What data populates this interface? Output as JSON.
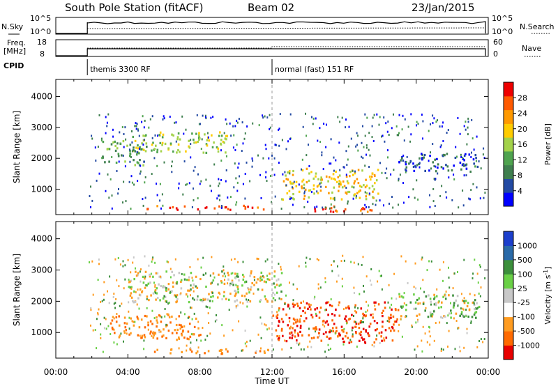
{
  "header": {
    "station": "South Pole Station (fitACF)",
    "beam": "Beam 02",
    "date": "23/Jan/2015"
  },
  "top_panels": {
    "nsky_label": "N.Sky",
    "nsky_ticks": [
      "10^5",
      "10^0"
    ],
    "nsearch_label": "N.Search",
    "freq_label_1": "Freq.",
    "freq_label_2": "[MHz]",
    "freq_ticks": [
      "18",
      "8"
    ],
    "nave_label": "Nave",
    "nave_ticks": [
      "60",
      "0"
    ],
    "cpid_label": "CPID",
    "cpid_modes": [
      {
        "label": "themis 3300 RF",
        "start_hour": 1.75
      },
      {
        "label": "normal (fast) 151 RF",
        "start_hour": 12.0
      }
    ]
  },
  "colors": {
    "power_scale": [
      "#0000ff",
      "#234aa3",
      "#3f7f4f",
      "#4fa34f",
      "#a3d24a",
      "#ffcc00",
      "#ff9900",
      "#ff5a00",
      "#ee0000"
    ],
    "velocity_scale": [
      "#e80000",
      "#ff6a00",
      "#ff9c21",
      "#ffffff",
      "#c8c8c8",
      "#6ad046",
      "#3c8f3c",
      "#2a6aa8",
      "#1c3fcc"
    ]
  },
  "chart_data": [
    {
      "type": "heatmap",
      "name": "Power",
      "ylabel": "Slant Range [km]",
      "xlabel": "Time UT",
      "x_ticks": [
        "00:00",
        "04:00",
        "08:00",
        "12:00",
        "16:00",
        "20:00",
        "00:00"
      ],
      "xlim_hours": [
        0,
        24
      ],
      "y_ticks": [
        "1000",
        "2000",
        "3000",
        "4000"
      ],
      "ylim": [
        180,
        4550
      ],
      "colorbar_label": "Power [dB]",
      "colorbar_ticks": [
        "4",
        "8",
        "12",
        "16",
        "20",
        "24",
        "28"
      ],
      "colorbar_range": [
        0,
        32
      ],
      "regions": [
        {
          "t": [
            5.0,
            11.8
          ],
          "r": [
            350,
            500
          ],
          "value": 28
        },
        {
          "t": [
            13.8,
            18.3
          ],
          "r": [
            300,
            480
          ],
          "value": 28
        },
        {
          "t": [
            4.2,
            9.5
          ],
          "r": [
            2200,
            2900
          ],
          "value": 16
        },
        {
          "t": [
            2.5,
            5.0
          ],
          "r": [
            1800,
            2600
          ],
          "value": 12
        },
        {
          "t": [
            12.5,
            18.0
          ],
          "r": [
            700,
            1700
          ],
          "value": 20
        },
        {
          "t": [
            19.0,
            23.5
          ],
          "r": [
            1600,
            2200
          ],
          "value": 6
        }
      ]
    },
    {
      "type": "heatmap",
      "name": "Velocity",
      "ylabel": "Slant Range [km]",
      "xlabel": "Time UT",
      "x_ticks": [
        "00:00",
        "04:00",
        "08:00",
        "12:00",
        "16:00",
        "20:00",
        "00:00"
      ],
      "xlim_hours": [
        0,
        24
      ],
      "y_ticks": [
        "1000",
        "2000",
        "3000",
        "4000"
      ],
      "ylim": [
        180,
        4550
      ],
      "colorbar_label": "Velocity [m s",
      "colorbar_unit_exp": "-1",
      "colorbar_unit_close": "]",
      "colorbar_ticks": [
        "-1000",
        "-500",
        "-100",
        "-25",
        "25",
        "100",
        "500",
        "1000"
      ],
      "regions": [
        {
          "t": [
            4.5,
            11.8
          ],
          "r": [
            350,
            500
          ],
          "value": -300
        },
        {
          "t": [
            3.0,
            8.0
          ],
          "r": [
            800,
            1600
          ],
          "value": -300
        },
        {
          "t": [
            12.0,
            19.0
          ],
          "r": [
            700,
            2000
          ],
          "value": -700
        },
        {
          "t": [
            4.0,
            12.5
          ],
          "r": [
            2000,
            3000
          ],
          "value": 0
        },
        {
          "t": [
            19.0,
            23.5
          ],
          "r": [
            1500,
            2300
          ],
          "value": 50
        }
      ]
    }
  ]
}
